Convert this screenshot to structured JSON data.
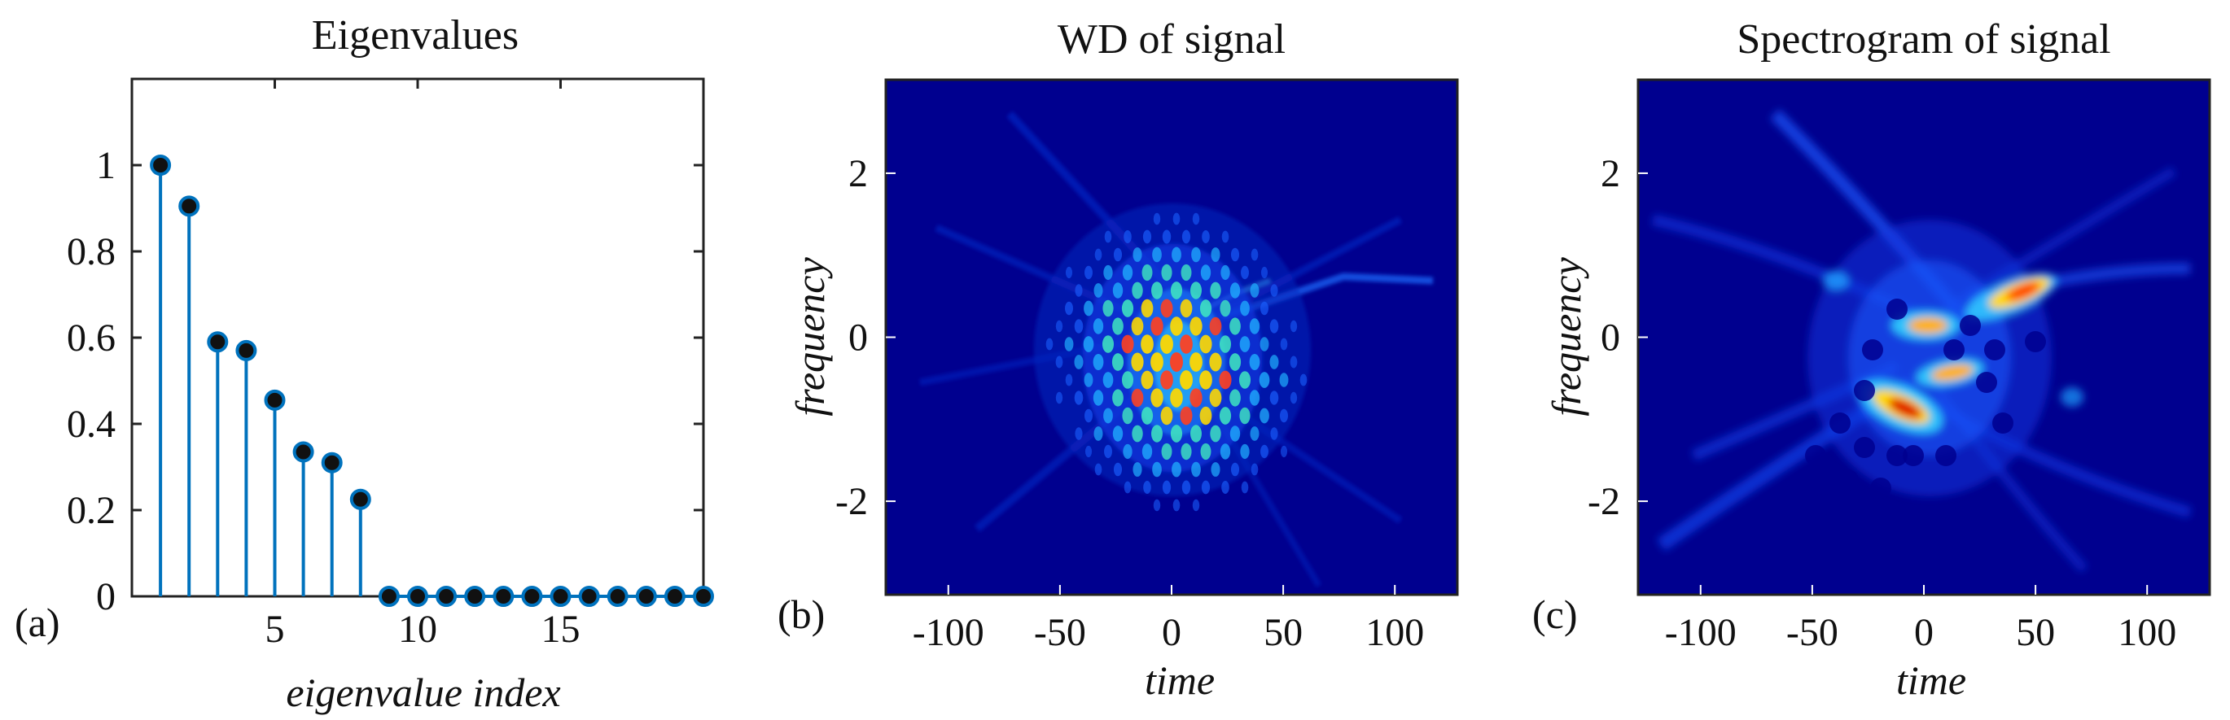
{
  "chart_data": [
    {
      "panel_label": "(a)",
      "type": "stem",
      "title": "Eigenvalues",
      "xlabel": "eigenvalue index",
      "ylabel": "",
      "xlim": [
        0,
        20
      ],
      "ylim": [
        0,
        1.2
      ],
      "x_ticks": [
        5,
        10,
        15
      ],
      "y_ticks": [
        0,
        0.2,
        0.4,
        0.6,
        0.8,
        1
      ],
      "y_tick_labels": [
        "0",
        "0.2",
        "0.4",
        "0.6",
        "0.8",
        "1"
      ],
      "x": [
        1,
        2,
        3,
        4,
        5,
        6,
        7,
        8,
        9,
        10,
        11,
        12,
        13,
        14,
        15,
        16,
        17,
        18,
        19,
        20
      ],
      "values": [
        1.0,
        0.905,
        0.59,
        0.57,
        0.455,
        0.335,
        0.31,
        0.225,
        0,
        0,
        0,
        0,
        0,
        0,
        0,
        0,
        0,
        0,
        0,
        0
      ],
      "stem_color": "#0072bd",
      "marker_fill": "#111111"
    },
    {
      "panel_label": "(b)",
      "type": "heatmap",
      "title": "WD of signal",
      "xlabel": "time",
      "ylabel": "frequency",
      "xlim": [
        -128,
        128
      ],
      "ylim": [
        -3.14,
        3.14
      ],
      "x_ticks": [
        -100,
        -50,
        0,
        50,
        100
      ],
      "y_ticks": [
        -2,
        0,
        2
      ],
      "colormap": "jet",
      "background": "#00008f"
    },
    {
      "panel_label": "(c)",
      "type": "heatmap",
      "title": "Spectrogram of signal",
      "xlabel": "time",
      "ylabel": "frequency",
      "xlim": [
        -128,
        128
      ],
      "ylim": [
        -3.14,
        3.14
      ],
      "x_ticks": [
        -100,
        -50,
        0,
        50,
        100
      ],
      "y_ticks": [
        -2,
        0,
        2
      ],
      "colormap": "jet",
      "background": "#00008f"
    }
  ]
}
